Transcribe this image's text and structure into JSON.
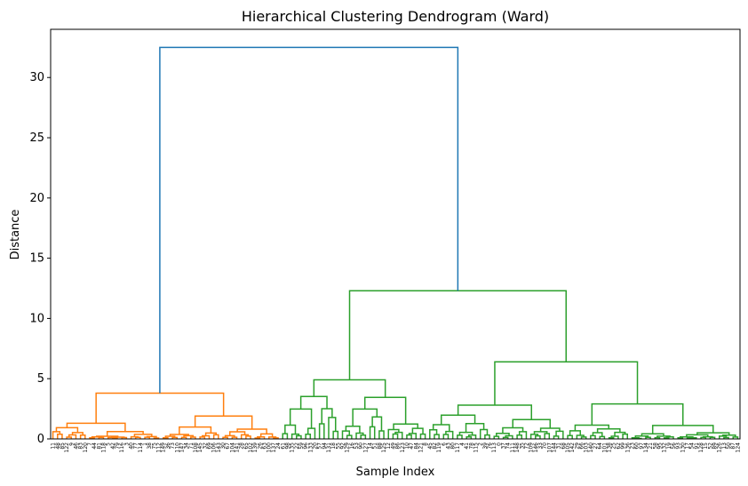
{
  "chart_data": {
    "type": "dendrogram",
    "title": "Hierarchical Clustering Dendrogram (Ward)",
    "xlabel": "Sample Index",
    "ylabel": "Distance",
    "ylim": [
      0,
      34
    ],
    "yticks": [
      0,
      5,
      10,
      15,
      20,
      25,
      30
    ],
    "grid": false,
    "legend": "none",
    "colors": {
      "top_link": "#1f77b4",
      "cluster_1": "#ff7f0e",
      "cluster_2": "#2ca02c",
      "axes": "#000000"
    },
    "leaf_count": 150,
    "merges": [
      {
        "name": "root",
        "height": 32.5,
        "color": "#1f77b4",
        "children": [
          "cluster-1",
          "cluster-2"
        ]
      },
      {
        "name": "cluster-1",
        "height": 3.8,
        "color": "#ff7f0e",
        "children": [
          "c1-a",
          "c1-b"
        ]
      },
      {
        "name": "c1-a",
        "height": 1.3,
        "color": "#ff7f0e"
      },
      {
        "name": "c1-b",
        "height": 1.9,
        "color": "#ff7f0e"
      },
      {
        "name": "cluster-2",
        "height": 12.3,
        "color": "#2ca02c",
        "children": [
          "c2-a",
          "c2-b"
        ]
      },
      {
        "name": "c2-a",
        "height": 4.9,
        "color": "#2ca02c"
      },
      {
        "name": "c2-b",
        "height": 6.4,
        "color": "#2ca02c"
      },
      {
        "name": "c2-b-1",
        "height": 2.8,
        "color": "#2ca02c"
      },
      {
        "name": "c2-b-2",
        "height": 2.9,
        "color": "#2ca02c"
      }
    ]
  }
}
